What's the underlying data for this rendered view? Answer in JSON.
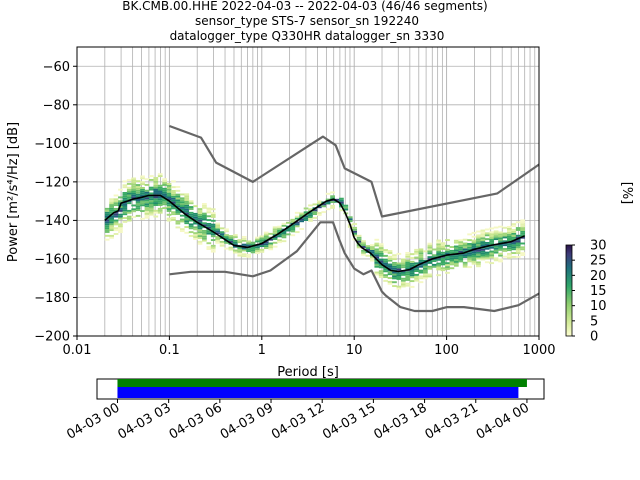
{
  "title_lines": [
    "BK.CMB.00.HHE   2022-04-03 -- 2022-04-03  (46/46 segments)",
    "sensor_type STS-7 sensor_sn 192240",
    "datalogger_type Q330HR datalogger_sn 3330"
  ],
  "colorbar": {
    "label": "[%]",
    "ticks": [
      "0",
      "5",
      "10",
      "15",
      "20",
      "25",
      "30"
    ],
    "range": [
      0,
      30
    ]
  },
  "chart_data": [
    {
      "type": "line",
      "title": "BK.CMB.00.HHE   2022-04-03 -- 2022-04-03  (46/46 segments)",
      "xlabel": "Period [s]",
      "ylabel": "Power [m²/s⁴/Hz] [dB]",
      "xscale": "log",
      "xlim": [
        0.01,
        1000
      ],
      "ylim": [
        -200,
        -50
      ],
      "grid": true,
      "xtick_labels": [
        "0.01",
        "0.1",
        "1",
        "10",
        "100",
        "1000"
      ],
      "ytick_labels": [
        "−60",
        "−80",
        "−100",
        "−120",
        "−140",
        "−160",
        "−180",
        "−200"
      ],
      "series": [
        {
          "role": "high-noise-model",
          "x": [
            0.1,
            0.22,
            0.32,
            0.8,
            3.8,
            4.6,
            6.3,
            7.9,
            15.4,
            20,
            354.8,
            1000
          ],
          "y": [
            -91,
            -97,
            -110,
            -120,
            -99,
            -96.5,
            -101,
            -113,
            -120,
            -138,
            -126,
            -111
          ]
        },
        {
          "role": "low-noise-model",
          "x": [
            0.1,
            0.17,
            0.4,
            0.8,
            1.24,
            2.4,
            4.3,
            5.9,
            6.9,
            7.9,
            10,
            12.6,
            15.4,
            20,
            21.9,
            31.6,
            45,
            70,
            101,
            154,
            328,
            600,
            1000
          ],
          "y": [
            -168,
            -166.7,
            -166.7,
            -169,
            -166,
            -156,
            -141,
            -141,
            -150,
            -157,
            -165,
            -168,
            -166,
            -177,
            -179,
            -185,
            -187,
            -187,
            -185,
            -185,
            -187,
            -184,
            -178
          ]
        },
        {
          "role": "mode",
          "x": [
            0.02,
            0.025,
            0.028,
            0.03,
            0.035,
            0.04,
            0.05,
            0.06,
            0.08,
            0.1,
            0.15,
            0.2,
            0.3,
            0.5,
            0.7,
            1.0,
            1.5,
            2.0,
            3.0,
            4.0,
            5.0,
            6.0,
            7.0,
            8.0,
            9.0,
            10.0,
            11.0,
            12.0,
            15.0,
            20.0,
            25.0,
            30.0,
            40.0,
            50.0,
            70.0,
            100.0,
            150.0,
            200.0,
            300.0,
            500.0,
            700.0
          ],
          "y": [
            -140,
            -136,
            -135,
            -131,
            -130,
            -129,
            -128,
            -127,
            -127,
            -130,
            -137,
            -141,
            -146,
            -153,
            -154,
            -152,
            -147,
            -143,
            -137,
            -133,
            -130,
            -129,
            -131,
            -136,
            -142,
            -149,
            -152,
            -154,
            -157,
            -163,
            -166,
            -166.5,
            -165.5,
            -163,
            -160,
            -158,
            -157,
            -155,
            -153,
            -151,
            -148
          ]
        }
      ],
      "colorbar_label": "[%]",
      "colorbar_range": [
        0,
        30
      ]
    },
    {
      "type": "bar",
      "xtick_labels": [
        "04-03 00",
        "04-03 03",
        "04-03 06",
        "04-03 09",
        "04-03 12",
        "04-03 15",
        "04-03 18",
        "04-03 21",
        "04-04 00"
      ],
      "x_hours": [
        0,
        3,
        6,
        9,
        12,
        15,
        18,
        21,
        24
      ],
      "xlim_hours": [
        -1.2,
        25
      ],
      "series": [
        {
          "color": "green",
          "start_hours": 0,
          "end_hours": 24
        },
        {
          "color": "blue",
          "start_hours": 0,
          "end_hours": 23.5
        }
      ]
    }
  ]
}
